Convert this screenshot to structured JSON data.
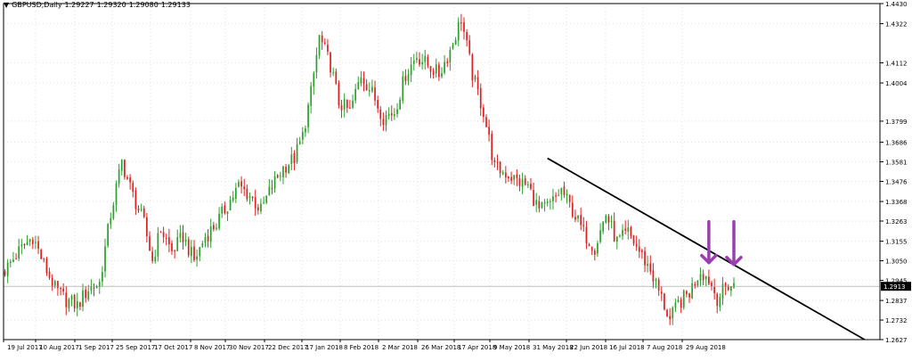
{
  "header": {
    "symbol": "GBPUSD,Daily",
    "open": "1.29227",
    "high": "1.29320",
    "low": "1.29080",
    "close": "1.29133"
  },
  "colors": {
    "bull": "#2ca02c",
    "bear": "#e02020",
    "trendline": "#000000",
    "arrow": "#9b3fb0",
    "grid": "#d0d0d0",
    "price_tag_bg": "#000000"
  },
  "chart_data": {
    "type": "candlestick",
    "title": "GBPUSD,Daily",
    "price_labels": [
      "1.4430",
      "1.4322",
      "1.4112",
      "1.4004",
      "1.3799",
      "1.3686",
      "1.3581",
      "1.3476",
      "1.3368",
      "1.3263",
      "1.3155",
      "1.3050",
      "1.2945",
      "1.2837",
      "1.2732",
      "1.2627"
    ],
    "current_price": "1.2913",
    "date_labels": [
      "19 Jul 2017",
      "10 Aug 2017",
      "1 Sep 2017",
      "25 Sep 2017",
      "17 Oct 2017",
      "8 Nov 2017",
      "30 Nov 2017",
      "22 Dec 2017",
      "17 Jan 2018",
      "8 Feb 2018",
      "2 Mar 2018",
      "26 Mar 2018",
      "17 Apr 2018",
      "9 May 2018",
      "31 May 2018",
      "22 Jun 2018",
      "16 Jul 2018",
      "7 Aug 2018",
      "29 Aug 2018"
    ],
    "ylim": [
      1.2627,
      1.443
    ],
    "grid": true,
    "anchors": [
      [
        0,
        1.3
      ],
      [
        5,
        1.31
      ],
      [
        10,
        1.318
      ],
      [
        14,
        1.303
      ],
      [
        18,
        1.29
      ],
      [
        22,
        1.284
      ],
      [
        26,
        1.281
      ],
      [
        30,
        1.29
      ],
      [
        34,
        1.293
      ],
      [
        38,
        1.33
      ],
      [
        42,
        1.358
      ],
      [
        46,
        1.34
      ],
      [
        50,
        1.325
      ],
      [
        53,
        1.305
      ],
      [
        56,
        1.322
      ],
      [
        60,
        1.31
      ],
      [
        64,
        1.318
      ],
      [
        68,
        1.305
      ],
      [
        72,
        1.318
      ],
      [
        76,
        1.325
      ],
      [
        80,
        1.335
      ],
      [
        84,
        1.345
      ],
      [
        88,
        1.34
      ],
      [
        92,
        1.332
      ],
      [
        96,
        1.345
      ],
      [
        100,
        1.355
      ],
      [
        104,
        1.36
      ],
      [
        107,
        1.372
      ],
      [
        110,
        1.395
      ],
      [
        113,
        1.425
      ],
      [
        117,
        1.41
      ],
      [
        120,
        1.39
      ],
      [
        124,
        1.385
      ],
      [
        128,
        1.405
      ],
      [
        132,
        1.395
      ],
      [
        136,
        1.382
      ],
      [
        140,
        1.385
      ],
      [
        144,
        1.405
      ],
      [
        148,
        1.415
      ],
      [
        152,
        1.41
      ],
      [
        156,
        1.405
      ],
      [
        160,
        1.418
      ],
      [
        164,
        1.435
      ],
      [
        168,
        1.405
      ],
      [
        172,
        1.385
      ],
      [
        176,
        1.355
      ],
      [
        180,
        1.352
      ],
      [
        184,
        1.348
      ],
      [
        188,
        1.345
      ],
      [
        192,
        1.332
      ],
      [
        196,
        1.335
      ],
      [
        200,
        1.343
      ],
      [
        204,
        1.332
      ],
      [
        208,
        1.32
      ],
      [
        212,
        1.312
      ],
      [
        216,
        1.33
      ],
      [
        220,
        1.315
      ],
      [
        224,
        1.32
      ],
      [
        228,
        1.31
      ],
      [
        232,
        1.3
      ],
      [
        236,
        1.285
      ],
      [
        239,
        1.273
      ],
      [
        242,
        1.282
      ],
      [
        246,
        1.288
      ],
      [
        250,
        1.3
      ],
      [
        253,
        1.295
      ],
      [
        256,
        1.285
      ],
      [
        260,
        1.292
      ],
      [
        262,
        1.2913
      ]
    ],
    "trendline": {
      "start": [
        195,
        1.36
      ],
      "end": [
        309,
        1.2627
      ]
    },
    "annotations": [
      {
        "type": "arrow-down",
        "x": 253,
        "from": 1.326,
        "to": 1.304
      },
      {
        "type": "arrow-down",
        "x": 262,
        "from": 1.326,
        "to": 1.303
      }
    ]
  }
}
